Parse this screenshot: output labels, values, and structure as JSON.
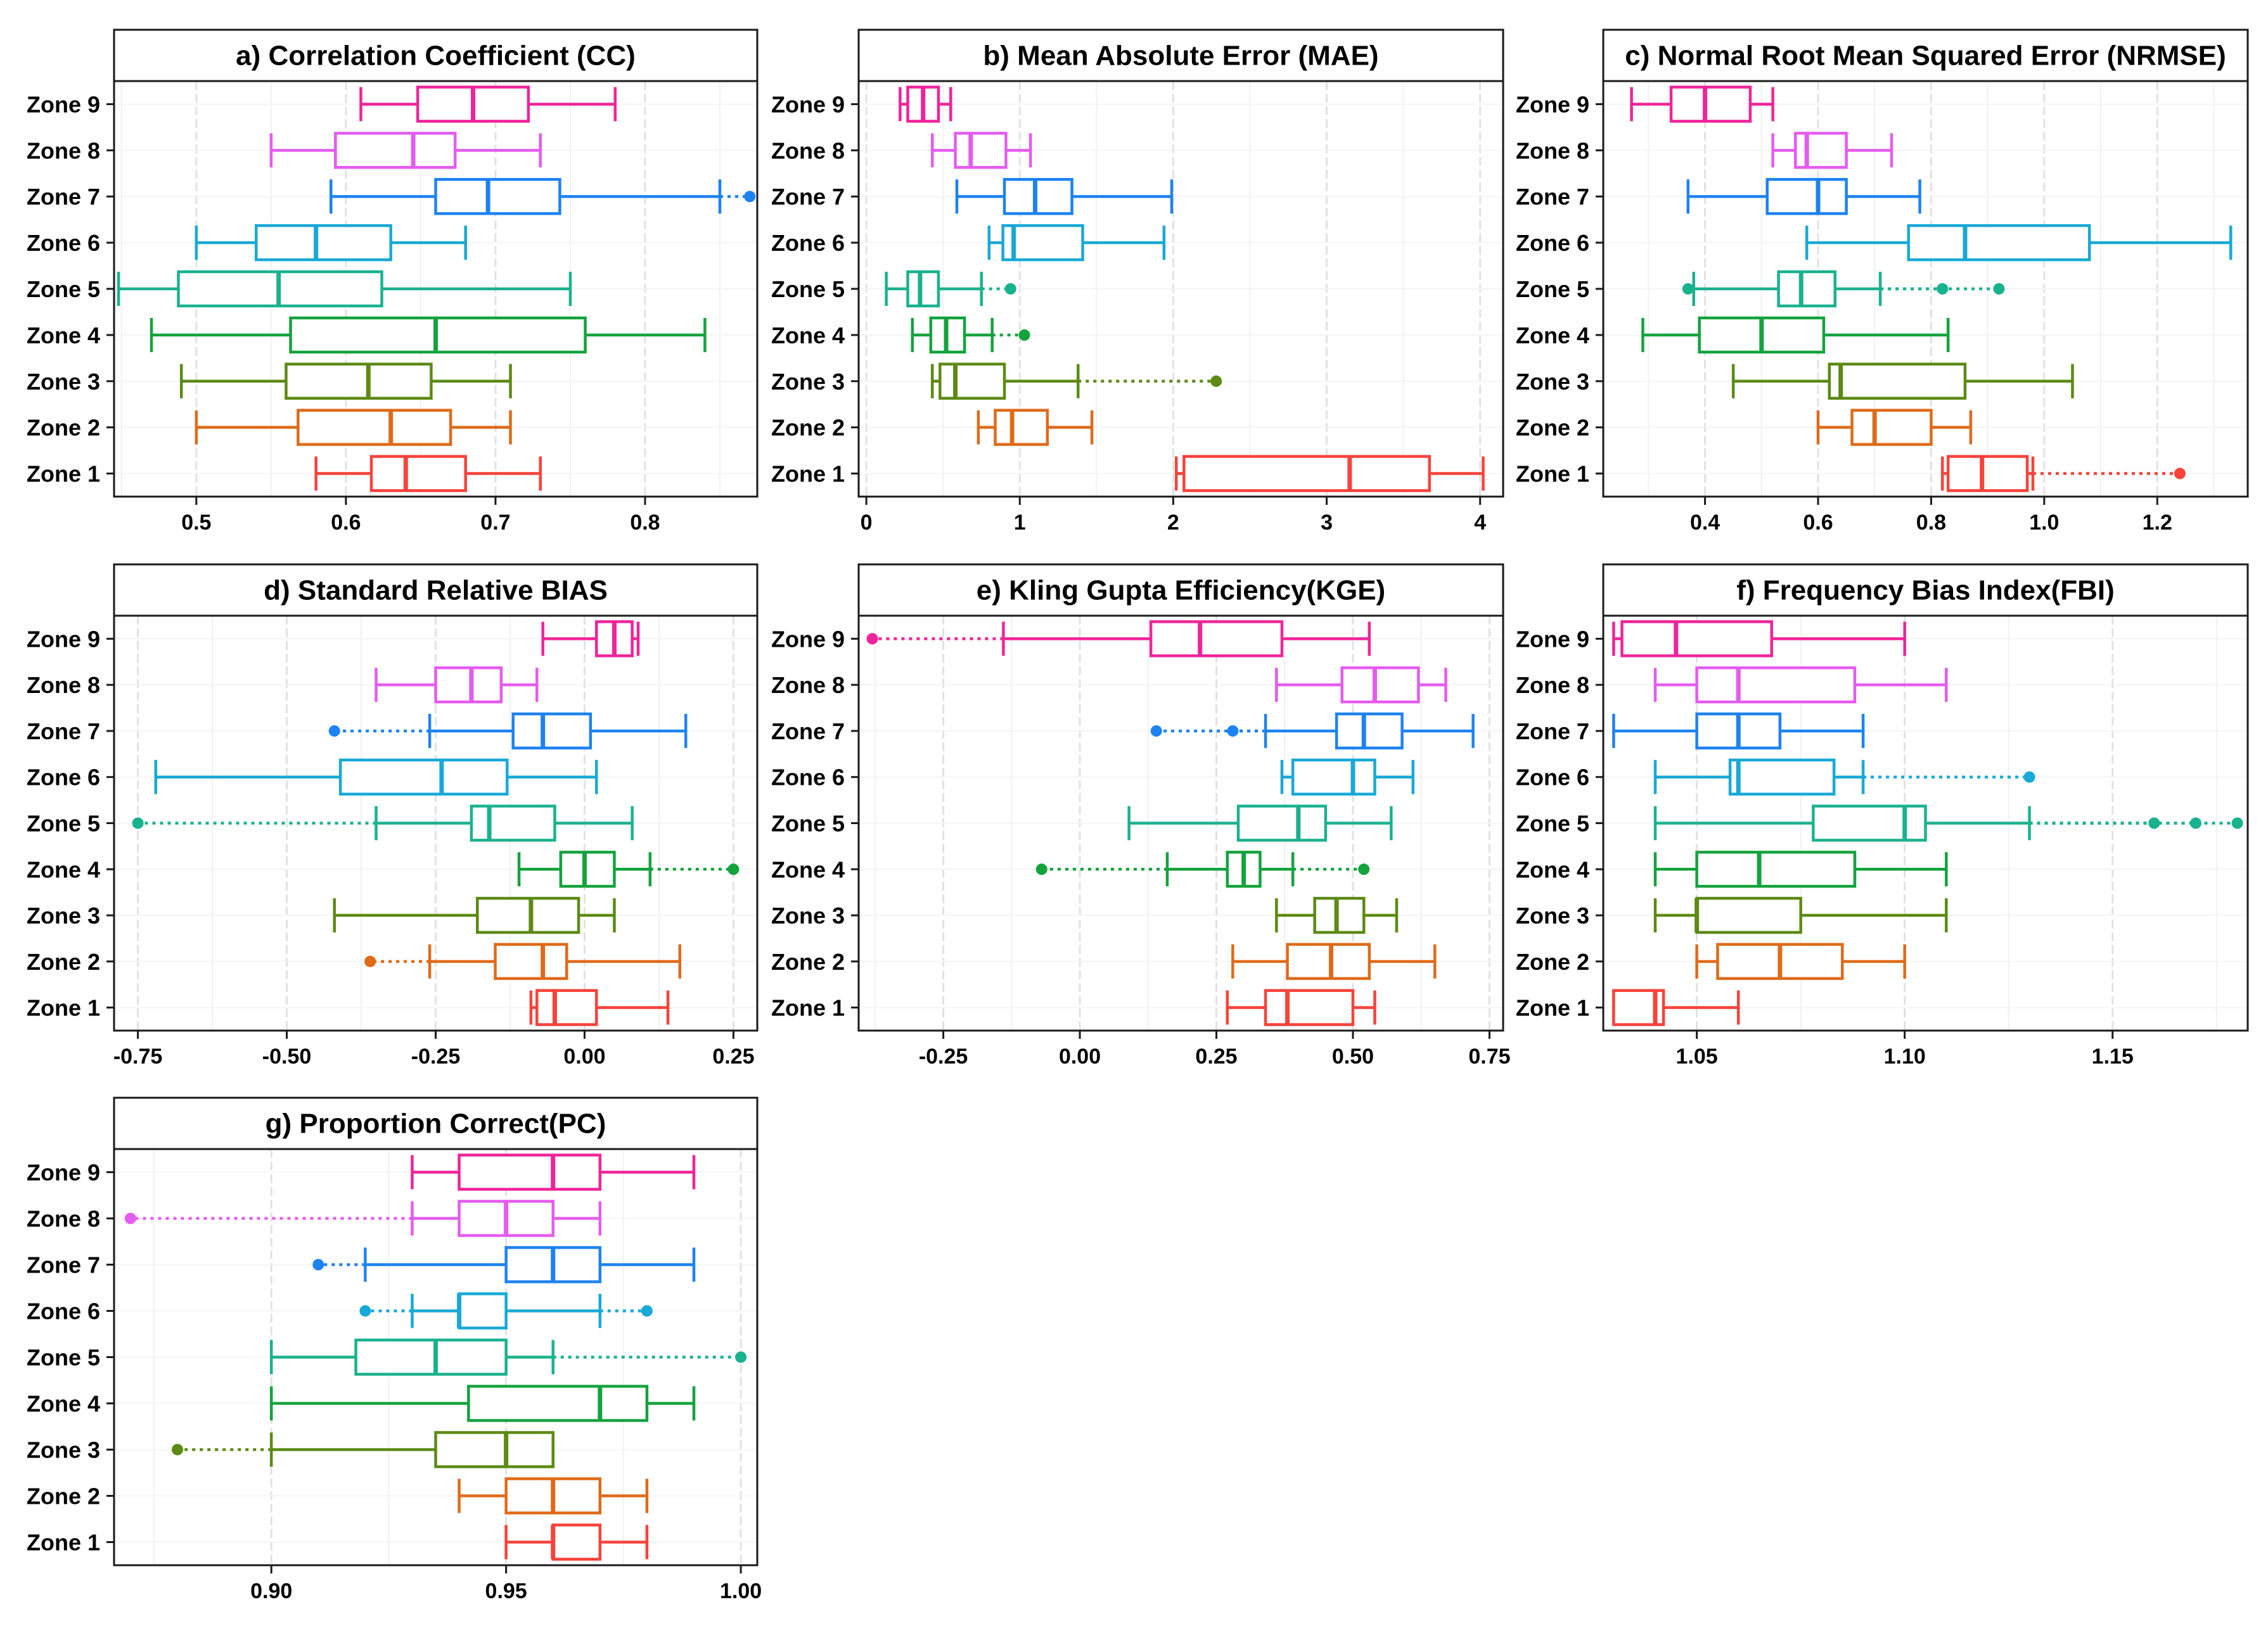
{
  "zone_labels": [
    "Zone 1",
    "Zone 2",
    "Zone 3",
    "Zone 4",
    "Zone 5",
    "Zone 6",
    "Zone 7",
    "Zone 8",
    "Zone 9"
  ],
  "zone_colors": [
    "#F8423A",
    "#E06A18",
    "#5C8A13",
    "#13A33D",
    "#19B28E",
    "#17A9D7",
    "#1D82F2",
    "#E55BF0",
    "#F0239A"
  ],
  "chart_data": [
    {
      "id": "cc",
      "type": "boxplot",
      "orientation": "horizontal",
      "title": "a) Correlation Coefficient (CC)",
      "xlim": [
        0.445,
        0.875
      ],
      "ticks": [
        0.5,
        0.6,
        0.7,
        0.8
      ],
      "tick_labels": [
        "0.5",
        "0.6",
        "0.7",
        "0.8"
      ],
      "grid_major": [
        0.5,
        0.6,
        0.7,
        0.8
      ],
      "grid_minor": [
        0.45,
        0.55,
        0.65,
        0.75,
        0.85
      ],
      "boxes": [
        {
          "zone": "Zone 1",
          "whisker_low": 0.58,
          "q1": 0.617,
          "median": 0.64,
          "q3": 0.68,
          "whisker_high": 0.73,
          "outliers": []
        },
        {
          "zone": "Zone 2",
          "whisker_low": 0.5,
          "q1": 0.568,
          "median": 0.63,
          "q3": 0.67,
          "whisker_high": 0.71,
          "outliers": []
        },
        {
          "zone": "Zone 3",
          "whisker_low": 0.49,
          "q1": 0.56,
          "median": 0.615,
          "q3": 0.657,
          "whisker_high": 0.71,
          "outliers": []
        },
        {
          "zone": "Zone 4",
          "whisker_low": 0.47,
          "q1": 0.563,
          "median": 0.66,
          "q3": 0.76,
          "whisker_high": 0.84,
          "outliers": []
        },
        {
          "zone": "Zone 5",
          "whisker_low": 0.448,
          "q1": 0.488,
          "median": 0.555,
          "q3": 0.624,
          "whisker_high": 0.75,
          "outliers": []
        },
        {
          "zone": "Zone 6",
          "whisker_low": 0.5,
          "q1": 0.54,
          "median": 0.58,
          "q3": 0.63,
          "whisker_high": 0.68,
          "outliers": []
        },
        {
          "zone": "Zone 7",
          "whisker_low": 0.59,
          "q1": 0.66,
          "median": 0.695,
          "q3": 0.743,
          "whisker_high": 0.85,
          "outliers": [
            0.87
          ]
        },
        {
          "zone": "Zone 8",
          "whisker_low": 0.55,
          "q1": 0.593,
          "median": 0.645,
          "q3": 0.673,
          "whisker_high": 0.73,
          "outliers": []
        },
        {
          "zone": "Zone 9",
          "whisker_low": 0.61,
          "q1": 0.648,
          "median": 0.685,
          "q3": 0.722,
          "whisker_high": 0.78,
          "outliers": []
        }
      ]
    },
    {
      "id": "mae",
      "type": "boxplot",
      "orientation": "horizontal",
      "title": "b) Mean Absolute Error (MAE)",
      "xlim": [
        -0.05,
        4.15
      ],
      "ticks": [
        0,
        1,
        2,
        3,
        4
      ],
      "tick_labels": [
        "0",
        "1",
        "2",
        "3",
        "4"
      ],
      "grid_major": [
        0,
        1,
        2,
        3,
        4
      ],
      "grid_minor": [
        0.5,
        1.5,
        2.5,
        3.5
      ],
      "boxes": [
        {
          "zone": "Zone 1",
          "whisker_low": 2.02,
          "q1": 2.07,
          "median": 3.15,
          "q3": 3.67,
          "whisker_high": 4.02,
          "outliers": []
        },
        {
          "zone": "Zone 2",
          "whisker_low": 0.73,
          "q1": 0.84,
          "median": 0.95,
          "q3": 1.18,
          "whisker_high": 1.47,
          "outliers": []
        },
        {
          "zone": "Zone 3",
          "whisker_low": 0.43,
          "q1": 0.48,
          "median": 0.58,
          "q3": 0.9,
          "whisker_high": 1.38,
          "outliers": [
            2.28
          ]
        },
        {
          "zone": "Zone 4",
          "whisker_low": 0.3,
          "q1": 0.42,
          "median": 0.52,
          "q3": 0.64,
          "whisker_high": 0.82,
          "outliers": [
            1.03
          ]
        },
        {
          "zone": "Zone 5",
          "whisker_low": 0.13,
          "q1": 0.27,
          "median": 0.35,
          "q3": 0.47,
          "whisker_high": 0.75,
          "outliers": [
            0.94
          ]
        },
        {
          "zone": "Zone 6",
          "whisker_low": 0.8,
          "q1": 0.89,
          "median": 0.96,
          "q3": 1.41,
          "whisker_high": 1.94,
          "outliers": []
        },
        {
          "zone": "Zone 7",
          "whisker_low": 0.59,
          "q1": 0.9,
          "median": 1.1,
          "q3": 1.34,
          "whisker_high": 1.99,
          "outliers": []
        },
        {
          "zone": "Zone 8",
          "whisker_low": 0.43,
          "q1": 0.58,
          "median": 0.68,
          "q3": 0.91,
          "whisker_high": 1.07,
          "outliers": []
        },
        {
          "zone": "Zone 9",
          "whisker_low": 0.22,
          "q1": 0.27,
          "median": 0.37,
          "q3": 0.47,
          "whisker_high": 0.55,
          "outliers": []
        }
      ]
    },
    {
      "id": "nrmse",
      "type": "boxplot",
      "orientation": "horizontal",
      "title": "c) Normal Root Mean Squared Error (NRMSE)",
      "xlim": [
        0.22,
        1.36
      ],
      "ticks": [
        0.4,
        0.6,
        0.8,
        1.0,
        1.2
      ],
      "tick_labels": [
        "0.4",
        "0.6",
        "0.8",
        "1.0",
        "1.2"
      ],
      "grid_major": [
        0.4,
        0.6,
        0.8,
        1.0,
        1.2
      ],
      "grid_minor": [
        0.3,
        0.5,
        0.7,
        0.9,
        1.1,
        1.3
      ],
      "boxes": [
        {
          "zone": "Zone 1",
          "whisker_low": 0.82,
          "q1": 0.83,
          "median": 0.89,
          "q3": 0.97,
          "whisker_high": 0.98,
          "outliers": [
            1.24
          ]
        },
        {
          "zone": "Zone 2",
          "whisker_low": 0.6,
          "q1": 0.66,
          "median": 0.7,
          "q3": 0.8,
          "whisker_high": 0.87,
          "outliers": []
        },
        {
          "zone": "Zone 3",
          "whisker_low": 0.45,
          "q1": 0.62,
          "median": 0.64,
          "q3": 0.86,
          "whisker_high": 1.05,
          "outliers": []
        },
        {
          "zone": "Zone 4",
          "whisker_low": 0.29,
          "q1": 0.39,
          "median": 0.5,
          "q3": 0.61,
          "whisker_high": 0.83,
          "outliers": []
        },
        {
          "zone": "Zone 5",
          "whisker_low": 0.38,
          "q1": 0.53,
          "median": 0.57,
          "q3": 0.63,
          "whisker_high": 0.71,
          "outliers": [
            0.37,
            0.82,
            0.92
          ]
        },
        {
          "zone": "Zone 6",
          "whisker_low": 0.58,
          "q1": 0.76,
          "median": 0.86,
          "q3": 1.08,
          "whisker_high": 1.33,
          "outliers": []
        },
        {
          "zone": "Zone 7",
          "whisker_low": 0.37,
          "q1": 0.51,
          "median": 0.6,
          "q3": 0.65,
          "whisker_high": 0.78,
          "outliers": []
        },
        {
          "zone": "Zone 8",
          "whisker_low": 0.52,
          "q1": 0.56,
          "median": 0.58,
          "q3": 0.65,
          "whisker_high": 0.73,
          "outliers": []
        },
        {
          "zone": "Zone 9",
          "whisker_low": 0.27,
          "q1": 0.34,
          "median": 0.4,
          "q3": 0.48,
          "whisker_high": 0.52,
          "outliers": []
        }
      ]
    },
    {
      "id": "bias",
      "type": "boxplot",
      "orientation": "horizontal",
      "title": "d) Standard Relative BIAS",
      "xlim": [
        -0.79,
        0.29
      ],
      "ticks": [
        -0.75,
        -0.5,
        -0.25,
        0.0,
        0.25
      ],
      "tick_labels": [
        "-0.75",
        "-0.50",
        "-0.25",
        "0.00",
        "0.25"
      ],
      "grid_major": [
        -0.75,
        -0.5,
        -0.25,
        0.0,
        0.25
      ],
      "grid_minor": [
        -0.625,
        -0.375,
        -0.125,
        0.125
      ],
      "boxes": [
        {
          "zone": "Zone 1",
          "whisker_low": -0.09,
          "q1": -0.08,
          "median": -0.05,
          "q3": 0.02,
          "whisker_high": 0.14,
          "outliers": []
        },
        {
          "zone": "Zone 2",
          "whisker_low": -0.26,
          "q1": -0.15,
          "median": -0.07,
          "q3": -0.03,
          "whisker_high": 0.16,
          "outliers": [
            -0.36
          ]
        },
        {
          "zone": "Zone 3",
          "whisker_low": -0.42,
          "q1": -0.18,
          "median": -0.09,
          "q3": -0.01,
          "whisker_high": 0.05,
          "outliers": []
        },
        {
          "zone": "Zone 4",
          "whisker_low": -0.11,
          "q1": -0.04,
          "median": 0.0,
          "q3": 0.05,
          "whisker_high": 0.11,
          "outliers": [
            0.25
          ]
        },
        {
          "zone": "Zone 5",
          "whisker_low": -0.35,
          "q1": -0.19,
          "median": -0.16,
          "q3": -0.05,
          "whisker_high": 0.08,
          "outliers": [
            -0.75
          ]
        },
        {
          "zone": "Zone 6",
          "whisker_low": -0.72,
          "q1": -0.41,
          "median": -0.24,
          "q3": -0.13,
          "whisker_high": 0.02,
          "outliers": []
        },
        {
          "zone": "Zone 7",
          "whisker_low": -0.26,
          "q1": -0.12,
          "median": -0.07,
          "q3": 0.01,
          "whisker_high": 0.17,
          "outliers": [
            -0.42
          ]
        },
        {
          "zone": "Zone 8",
          "whisker_low": -0.35,
          "q1": -0.25,
          "median": -0.19,
          "q3": -0.14,
          "whisker_high": -0.08,
          "outliers": []
        },
        {
          "zone": "Zone 9",
          "whisker_low": -0.07,
          "q1": 0.02,
          "median": 0.05,
          "q3": 0.08,
          "whisker_high": 0.09,
          "outliers": []
        }
      ]
    },
    {
      "id": "kge",
      "type": "boxplot",
      "orientation": "horizontal",
      "title": "e) Kling Gupta Efficiency(KGE)",
      "xlim": [
        -0.405,
        0.775
      ],
      "ticks": [
        -0.25,
        0.0,
        0.25,
        0.5,
        0.75
      ],
      "tick_labels": [
        "-0.25",
        "0.00",
        "0.25",
        "0.50",
        "0.75"
      ],
      "grid_major": [
        -0.25,
        0.0,
        0.25,
        0.5,
        0.75
      ],
      "grid_minor": [
        -0.375,
        -0.125,
        0.125,
        0.375,
        0.625
      ],
      "boxes": [
        {
          "zone": "Zone 1",
          "whisker_low": 0.27,
          "q1": 0.34,
          "median": 0.38,
          "q3": 0.5,
          "whisker_high": 0.54,
          "outliers": []
        },
        {
          "zone": "Zone 2",
          "whisker_low": 0.28,
          "q1": 0.38,
          "median": 0.46,
          "q3": 0.53,
          "whisker_high": 0.65,
          "outliers": []
        },
        {
          "zone": "Zone 3",
          "whisker_low": 0.36,
          "q1": 0.43,
          "median": 0.47,
          "q3": 0.52,
          "whisker_high": 0.58,
          "outliers": []
        },
        {
          "zone": "Zone 4",
          "whisker_low": 0.16,
          "q1": 0.27,
          "median": 0.3,
          "q3": 0.33,
          "whisker_high": 0.39,
          "outliers": [
            -0.07,
            0.52
          ]
        },
        {
          "zone": "Zone 5",
          "whisker_low": 0.09,
          "q1": 0.29,
          "median": 0.4,
          "q3": 0.45,
          "whisker_high": 0.57,
          "outliers": []
        },
        {
          "zone": "Zone 6",
          "whisker_low": 0.37,
          "q1": 0.39,
          "median": 0.5,
          "q3": 0.54,
          "whisker_high": 0.61,
          "outliers": []
        },
        {
          "zone": "Zone 7",
          "whisker_low": 0.34,
          "q1": 0.47,
          "median": 0.52,
          "q3": 0.59,
          "whisker_high": 0.72,
          "outliers": [
            0.14,
            0.28
          ]
        },
        {
          "zone": "Zone 8",
          "whisker_low": 0.36,
          "q1": 0.48,
          "median": 0.54,
          "q3": 0.62,
          "whisker_high": 0.67,
          "outliers": []
        },
        {
          "zone": "Zone 9",
          "whisker_low": -0.14,
          "q1": 0.13,
          "median": 0.22,
          "q3": 0.37,
          "whisker_high": 0.53,
          "outliers": [
            -0.38
          ]
        }
      ]
    },
    {
      "id": "fbi",
      "type": "boxplot",
      "orientation": "horizontal",
      "title": "f) Frequency Bias Index(FBI)",
      "xlim": [
        1.0275,
        1.1825
      ],
      "ticks": [
        1.05,
        1.1,
        1.15
      ],
      "tick_labels": [
        "1.05",
        "1.10",
        "1.15"
      ],
      "grid_major": [
        1.05,
        1.1,
        1.15
      ],
      "grid_minor": [
        1.075,
        1.125,
        1.175
      ],
      "boxes": [
        {
          "zone": "Zone 1",
          "whisker_low": 1.03,
          "q1": 1.03,
          "median": 1.04,
          "q3": 1.042,
          "whisker_high": 1.06,
          "outliers": []
        },
        {
          "zone": "Zone 2",
          "whisker_low": 1.05,
          "q1": 1.055,
          "median": 1.07,
          "q3": 1.085,
          "whisker_high": 1.1,
          "outliers": []
        },
        {
          "zone": "Zone 3",
          "whisker_low": 1.04,
          "q1": 1.05,
          "median": 1.05,
          "q3": 1.075,
          "whisker_high": 1.11,
          "outliers": []
        },
        {
          "zone": "Zone 4",
          "whisker_low": 1.04,
          "q1": 1.05,
          "median": 1.065,
          "q3": 1.088,
          "whisker_high": 1.11,
          "outliers": []
        },
        {
          "zone": "Zone 5",
          "whisker_low": 1.04,
          "q1": 1.078,
          "median": 1.1,
          "q3": 1.105,
          "whisker_high": 1.13,
          "outliers": [
            1.16,
            1.17,
            1.18
          ]
        },
        {
          "zone": "Zone 6",
          "whisker_low": 1.04,
          "q1": 1.058,
          "median": 1.06,
          "q3": 1.083,
          "whisker_high": 1.09,
          "outliers": [
            1.13
          ]
        },
        {
          "zone": "Zone 7",
          "whisker_low": 1.03,
          "q1": 1.05,
          "median": 1.06,
          "q3": 1.07,
          "whisker_high": 1.09,
          "outliers": []
        },
        {
          "zone": "Zone 8",
          "whisker_low": 1.04,
          "q1": 1.05,
          "median": 1.06,
          "q3": 1.088,
          "whisker_high": 1.11,
          "outliers": []
        },
        {
          "zone": "Zone 9",
          "whisker_low": 1.03,
          "q1": 1.032,
          "median": 1.045,
          "q3": 1.068,
          "whisker_high": 1.1,
          "outliers": []
        }
      ]
    },
    {
      "id": "pc",
      "type": "boxplot",
      "orientation": "horizontal",
      "title": "g) Proportion Correct(PC)",
      "xlim": [
        0.8665,
        1.0035
      ],
      "ticks": [
        0.9,
        0.95,
        1.0
      ],
      "tick_labels": [
        "0.90",
        "0.95",
        "1.00"
      ],
      "grid_major": [
        0.9,
        0.95,
        1.0
      ],
      "grid_minor": [
        0.875,
        0.925,
        0.975
      ],
      "boxes": [
        {
          "zone": "Zone 1",
          "whisker_low": 0.95,
          "q1": 0.96,
          "median": 0.96,
          "q3": 0.97,
          "whisker_high": 0.98,
          "outliers": []
        },
        {
          "zone": "Zone 2",
          "whisker_low": 0.94,
          "q1": 0.95,
          "median": 0.96,
          "q3": 0.97,
          "whisker_high": 0.98,
          "outliers": []
        },
        {
          "zone": "Zone 3",
          "whisker_low": 0.9,
          "q1": 0.935,
          "median": 0.95,
          "q3": 0.96,
          "whisker_high": 0.96,
          "outliers": [
            0.88
          ]
        },
        {
          "zone": "Zone 4",
          "whisker_low": 0.9,
          "q1": 0.942,
          "median": 0.97,
          "q3": 0.98,
          "whisker_high": 0.99,
          "outliers": []
        },
        {
          "zone": "Zone 5",
          "whisker_low": 0.9,
          "q1": 0.918,
          "median": 0.935,
          "q3": 0.95,
          "whisker_high": 0.96,
          "outliers": [
            1.0
          ]
        },
        {
          "zone": "Zone 6",
          "whisker_low": 0.93,
          "q1": 0.94,
          "median": 0.94,
          "q3": 0.95,
          "whisker_high": 0.97,
          "outliers": [
            0.92,
            0.98
          ]
        },
        {
          "zone": "Zone 7",
          "whisker_low": 0.92,
          "q1": 0.95,
          "median": 0.96,
          "q3": 0.97,
          "whisker_high": 0.99,
          "outliers": [
            0.91
          ]
        },
        {
          "zone": "Zone 8",
          "whisker_low": 0.93,
          "q1": 0.94,
          "median": 0.95,
          "q3": 0.96,
          "whisker_high": 0.97,
          "outliers": [
            0.87
          ]
        },
        {
          "zone": "Zone 9",
          "whisker_low": 0.93,
          "q1": 0.94,
          "median": 0.96,
          "q3": 0.97,
          "whisker_high": 0.99,
          "outliers": []
        }
      ]
    }
  ]
}
